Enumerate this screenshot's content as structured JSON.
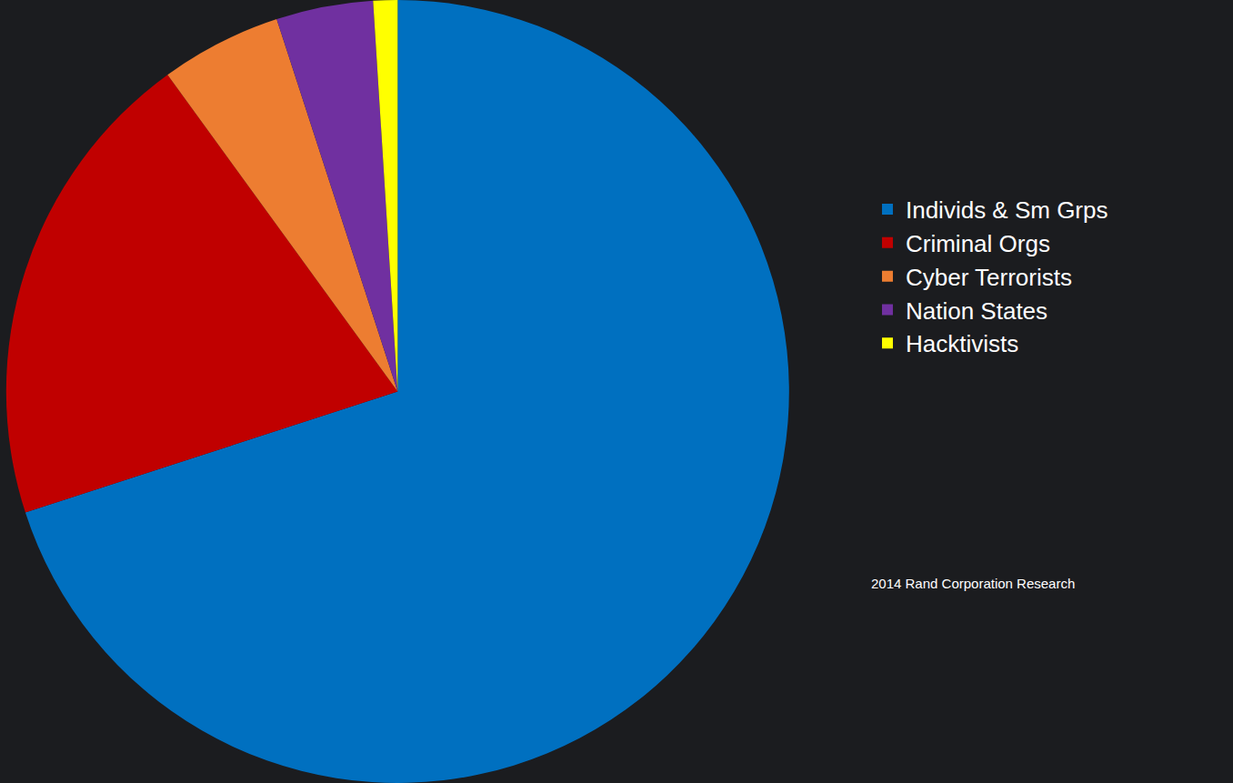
{
  "chart_data": {
    "type": "pie",
    "categories": [
      "Individs & Sm Grps",
      "Criminal Orgs",
      "Cyber Terrorists",
      "Nation States",
      "Hacktivists"
    ],
    "values": [
      70,
      20,
      5,
      4,
      1
    ],
    "colors": [
      "#0070c0",
      "#c00000",
      "#ed7d31",
      "#7030a0",
      "#ffff00"
    ],
    "legend": "right",
    "annotations": [
      "2014 Rand Corporation Research"
    ]
  }
}
